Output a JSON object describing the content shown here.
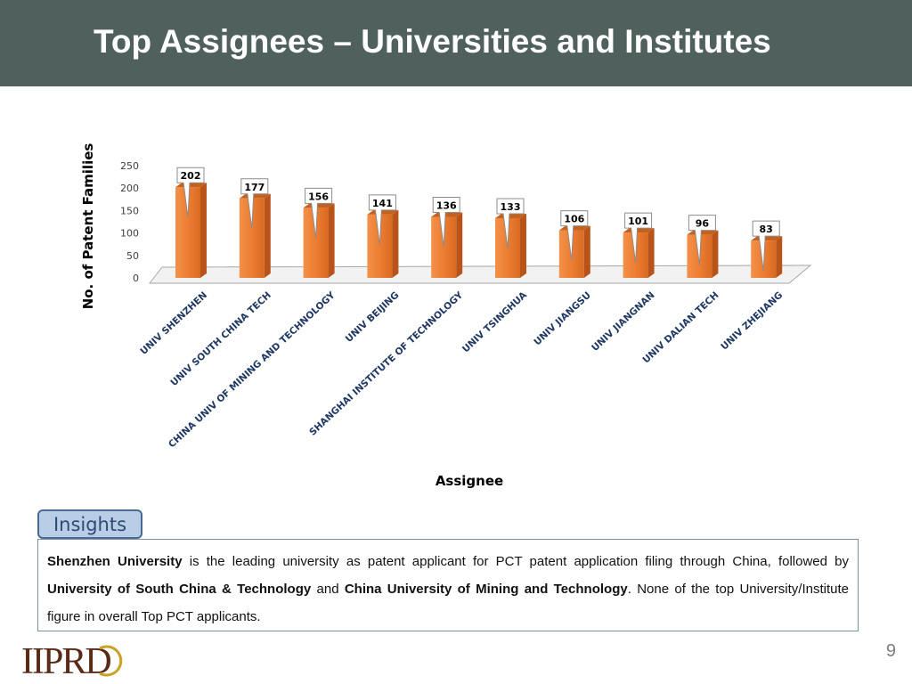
{
  "title": "Top Assignees – Universities and Institutes",
  "chart_data": {
    "type": "bar",
    "categories": [
      "UNIV SHENZHEN",
      "UNIV SOUTH CHINA TECH",
      "CHINA UNIV OF MINING AND TECHNOLOGY",
      "UNIV BEIJING",
      "SHANGHAI INSTITUTE OF TECHNOLOGY",
      "UNIV TSINGHUA",
      "UNIV JIANGSU",
      "UNIV JIANGNAN",
      "UNIV DALIAN TECH",
      "UNIV ZHEJIANG"
    ],
    "values": [
      202,
      177,
      156,
      141,
      136,
      133,
      106,
      101,
      96,
      83
    ],
    "ylim": [
      0,
      250
    ],
    "yticks": [
      0,
      50,
      100,
      150,
      200,
      250
    ],
    "xlabel": "Assignee",
    "ylabel": "No. of Patent Families",
    "bar_color": "#ed7d31",
    "grid": false,
    "data_labels": true
  },
  "insights": {
    "tab_label": "Insights",
    "p1": "Shenzhen University",
    "p2": " is the leading university as patent applicant for PCT patent application filing through China, followed by ",
    "p3": "University of South China & Technology",
    "p4": " and ",
    "p5": "China University of Mining and Technology",
    "p6": ". None of the top University/Institute figure in  overall Top PCT applicants."
  },
  "logo": "IIPRD",
  "page_number": "9"
}
